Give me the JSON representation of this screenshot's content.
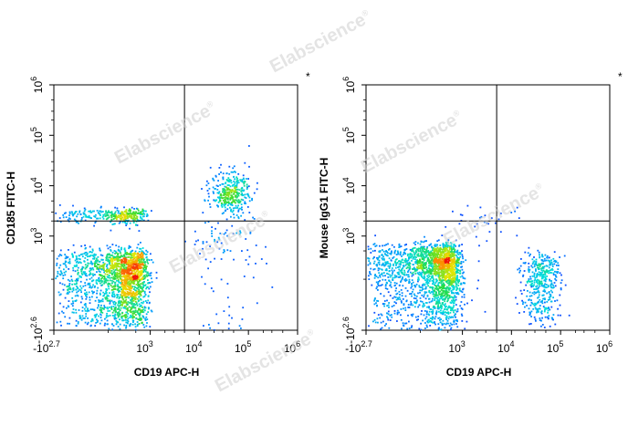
{
  "watermark": {
    "text": "Elabscience",
    "mark": "®"
  },
  "chart_data": [
    {
      "type": "scatter",
      "subtype": "flow-cytometry-density-dot-plot",
      "corner_mark": "*",
      "xlabel": "CD19 APC-H",
      "ylabel": "CD185 FITC-H",
      "x_scale": "biexponential",
      "y_scale": "biexponential",
      "xlim": [
        -501,
        1000000
      ],
      "ylim": [
        -398,
        1000000
      ],
      "x_ticks": [
        {
          "value": -501,
          "base": "-10",
          "exp": "2.7"
        },
        {
          "value": 1000,
          "base": "10",
          "exp": "3"
        },
        {
          "value": 10000,
          "base": "10",
          "exp": "4"
        },
        {
          "value": 100000,
          "base": "10",
          "exp": "5"
        },
        {
          "value": 1000000,
          "base": "10",
          "exp": "6"
        }
      ],
      "y_ticks": [
        {
          "value": -398,
          "base": "-10",
          "exp": "2.6"
        },
        {
          "value": 1000,
          "base": "10",
          "exp": "3"
        },
        {
          "value": 10000,
          "base": "10",
          "exp": "4"
        },
        {
          "value": 100000,
          "base": "10",
          "exp": "5"
        },
        {
          "value": 1000000,
          "base": "10",
          "exp": "6"
        }
      ],
      "gate": {
        "x": 5000,
        "y": 2000
      },
      "populations": [
        {
          "x_center": 250,
          "y_center": 100,
          "x_spread": 650,
          "y_spread": 450,
          "count": 1900,
          "density": "high"
        },
        {
          "x_center": 200,
          "y_center": 2700,
          "x_spread": 550,
          "y_spread": 1100,
          "count": 320,
          "density": "medium"
        },
        {
          "x_center": 42000,
          "y_center": 7500,
          "x_spread": 18000,
          "y_spread": 3600,
          "count": 360,
          "density": "medium"
        },
        {
          "x_center": 35000,
          "y_center": 300,
          "x_spread": 40000,
          "y_spread": 900,
          "count": 110,
          "density": "low"
        }
      ]
    },
    {
      "type": "scatter",
      "subtype": "flow-cytometry-density-dot-plot",
      "corner_mark": "*",
      "xlabel": "CD19 APC-H",
      "ylabel": "Mouse IgG1 FITC-H",
      "x_scale": "biexponential",
      "y_scale": "biexponential",
      "xlim": [
        -501,
        1000000
      ],
      "ylim": [
        -398,
        1000000
      ],
      "x_ticks": [
        {
          "value": -501,
          "base": "-10",
          "exp": "2.7"
        },
        {
          "value": 1000,
          "base": "10",
          "exp": "3"
        },
        {
          "value": 10000,
          "base": "10",
          "exp": "4"
        },
        {
          "value": 100000,
          "base": "10",
          "exp": "5"
        },
        {
          "value": 1000000,
          "base": "10",
          "exp": "6"
        }
      ],
      "y_ticks": [
        {
          "value": -398,
          "base": "-10",
          "exp": "2.6"
        },
        {
          "value": 1000,
          "base": "10",
          "exp": "3"
        },
        {
          "value": 10000,
          "base": "10",
          "exp": "4"
        },
        {
          "value": 100000,
          "base": "10",
          "exp": "5"
        },
        {
          "value": 1000000,
          "base": "10",
          "exp": "6"
        }
      ],
      "gate": {
        "x": 5000,
        "y": 2000
      },
      "populations": [
        {
          "x_center": 250,
          "y_center": 180,
          "x_spread": 650,
          "y_spread": 550,
          "count": 2100,
          "density": "high"
        },
        {
          "x_center": 40000,
          "y_center": 80,
          "x_spread": 16000,
          "y_spread": 380,
          "count": 420,
          "density": "medium"
        },
        {
          "x_center": 3000,
          "y_center": 1200,
          "x_spread": 3000,
          "y_spread": 1500,
          "count": 40,
          "density": "low"
        }
      ]
    }
  ]
}
